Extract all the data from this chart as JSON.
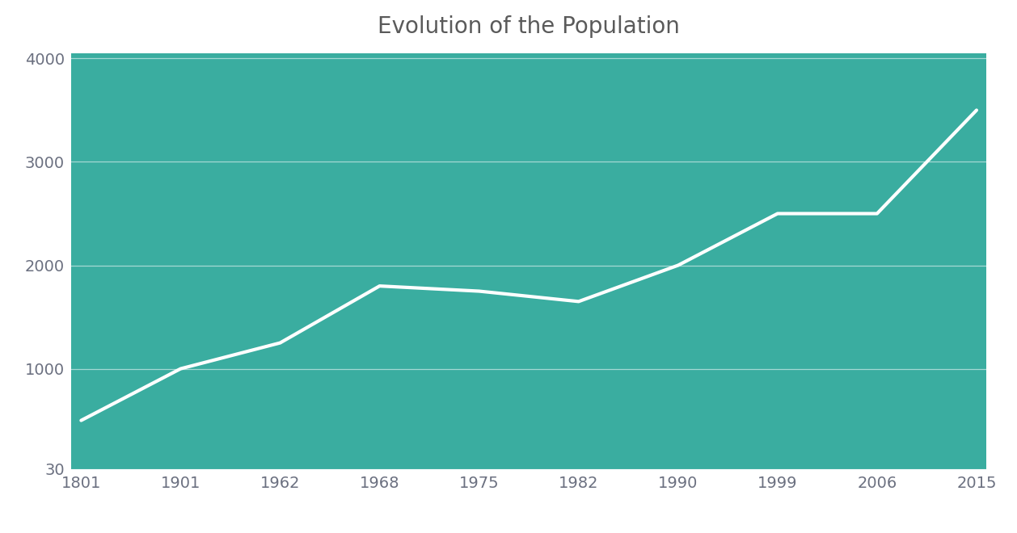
{
  "title": "Evolution of the Population",
  "title_fontsize": 20,
  "title_color": "#5a5a5a",
  "x_indices": [
    0,
    1,
    2,
    3,
    4,
    5,
    6,
    7,
    8,
    9
  ],
  "y_values": [
    500,
    1000,
    1250,
    1800,
    1750,
    1650,
    2000,
    2500,
    2500,
    3500
  ],
  "yticks": [
    30,
    1000,
    2000,
    3000,
    4000
  ],
  "ytick_labels": [
    "30",
    "1000",
    "2000",
    "3000",
    "4000"
  ],
  "xtick_labels": [
    "1801",
    "1901",
    "1962",
    "1968",
    "1975",
    "1982",
    "1990",
    "1999",
    "2006",
    "2015"
  ],
  "ylim_min": 30,
  "ylim_max": 4050,
  "xlim_min": -0.1,
  "xlim_max": 9.1,
  "line_color": "#ffffff",
  "line_width": 3.0,
  "fill_color": "#3aada0",
  "bg_color": "#ffffff",
  "grid_color": "#ffffff",
  "grid_alpha": 0.55,
  "grid_linewidth": 0.9,
  "tick_color": "#6b7080",
  "tick_fontsize": 14,
  "title_font": "DejaVu Sans"
}
